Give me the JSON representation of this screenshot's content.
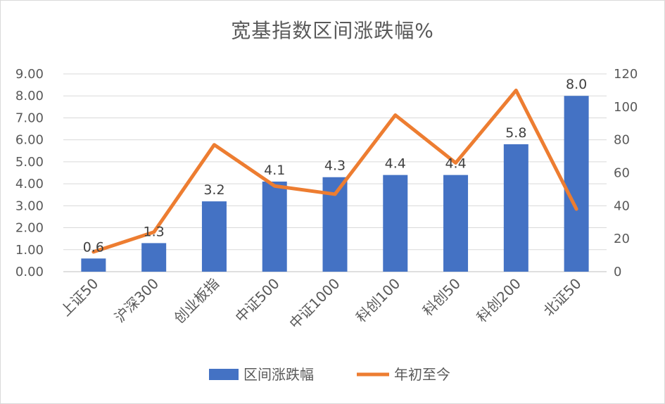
{
  "chart_data": {
    "type": "bar",
    "title": "宽基指数区间涨跌幅%",
    "categories": [
      "上证50",
      "沪深300",
      "创业板指",
      "中证500",
      "中证1000",
      "科创100",
      "科创50",
      "科创200",
      "北证50"
    ],
    "series": [
      {
        "name": "区间涨跌幅",
        "type": "bar",
        "axis": "left",
        "color": "#4472c4",
        "values": [
          0.6,
          1.3,
          3.2,
          4.1,
          4.3,
          4.4,
          4.4,
          5.8,
          8.0
        ],
        "data_labels": [
          "0.6",
          "1.3",
          "3.2",
          "4.1",
          "4.3",
          "4.4",
          "4.4",
          "5.8",
          "8.0"
        ]
      },
      {
        "name": "年初至今",
        "type": "line",
        "axis": "right",
        "color": "#ed7d31",
        "values": [
          12,
          24,
          77,
          52,
          47,
          95,
          66,
          110,
          38
        ]
      }
    ],
    "y_left": {
      "ylim": [
        0,
        9
      ],
      "ticks": [
        "0.00",
        "1.00",
        "2.00",
        "3.00",
        "4.00",
        "5.00",
        "6.00",
        "7.00",
        "8.00",
        "9.00"
      ]
    },
    "y_right": {
      "ylim": [
        0,
        120
      ],
      "ticks": [
        "0",
        "20",
        "40",
        "60",
        "80",
        "100",
        "120"
      ]
    },
    "grid": true,
    "legend_position": "bottom"
  }
}
